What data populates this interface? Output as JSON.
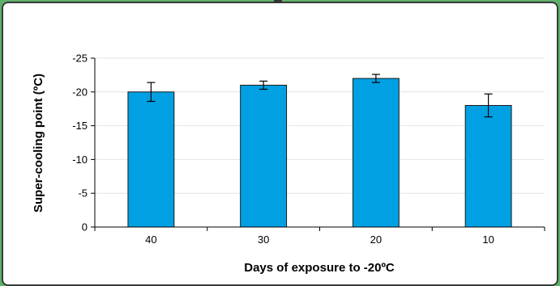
{
  "chart_data": {
    "type": "bar",
    "title": "",
    "xlabel": "Days of exposure to -20ºC",
    "ylabel": "Super-cooling point (ºC)",
    "categories": [
      "40",
      "30",
      "20",
      "10"
    ],
    "values": [
      -20,
      -21,
      -22,
      -18
    ],
    "errors": [
      1.4,
      0.6,
      0.6,
      1.7
    ],
    "ylim": [
      0,
      -25
    ],
    "yticks": [
      0,
      -5,
      -10,
      -15,
      -20,
      -25
    ],
    "ytick_labels": [
      "0",
      "-5",
      "-10",
      "-15",
      "-20",
      "-25"
    ],
    "grid": true,
    "bar_color": "#00a0e3",
    "bar_edge_color": "#1a1a1a"
  }
}
